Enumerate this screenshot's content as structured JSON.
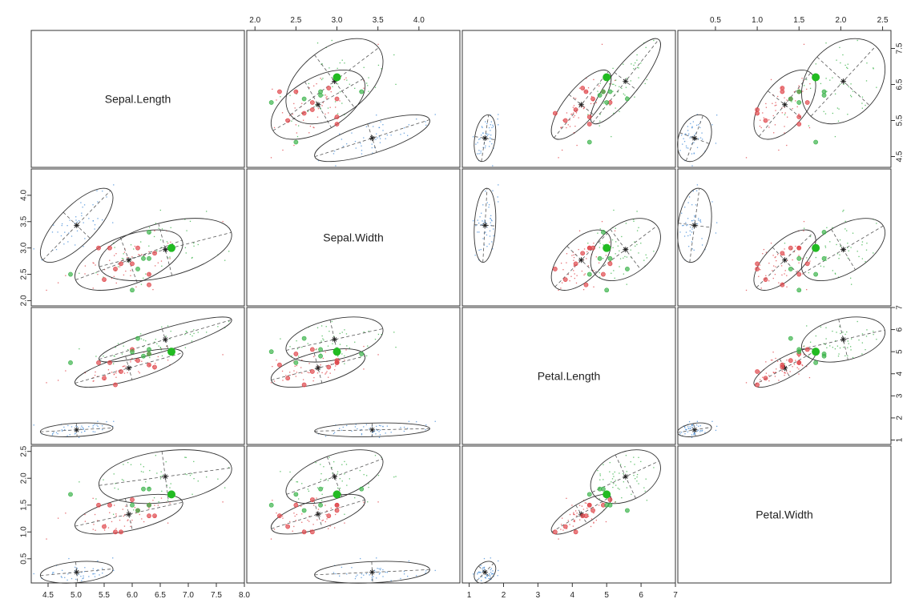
{
  "chart_data": {
    "type": "scatter-matrix",
    "variables": [
      "Sepal.Length",
      "Sepal.Width",
      "Petal.Length",
      "Petal.Width"
    ],
    "ranges": {
      "Sepal.Length": [
        4.2,
        8.0
      ],
      "Sepal.Width": [
        1.9,
        4.5
      ],
      "Petal.Length": [
        0.8,
        7.0
      ],
      "Petal.Width": [
        0.05,
        2.6
      ]
    },
    "ticks": {
      "Sepal.Length": {
        "bottom": [
          "4.5",
          "5.0",
          "5.5",
          "6.0",
          "6.5",
          "7.0",
          "7.5",
          "8.0"
        ],
        "right": [
          "4.5",
          "5.5",
          "6.5",
          "7.5"
        ]
      },
      "Sepal.Width": {
        "top": [
          "2.0",
          "2.5",
          "3.0",
          "3.5",
          "4.0"
        ],
        "left": [
          "2.0",
          "2.5",
          "3.0",
          "3.5",
          "4.0"
        ]
      },
      "Petal.Length": {
        "bottom": [
          "1",
          "2",
          "3",
          "4",
          "5",
          "6",
          "7"
        ],
        "right": [
          "1",
          "2",
          "3",
          "4",
          "5",
          "6",
          "7"
        ]
      },
      "Petal.Width": {
        "top": [
          "0.5",
          "1.0",
          "1.5",
          "2.0",
          "2.5"
        ],
        "left": [
          "0.5",
          "1.0",
          "1.5",
          "2.0",
          "2.5"
        ]
      }
    },
    "groups": [
      {
        "color": "#4a90d9",
        "center": [
          5.01,
          3.43,
          1.46,
          0.25
        ],
        "sd": [
          0.35,
          0.38,
          0.17,
          0.11
        ]
      },
      {
        "color": "#e0474c",
        "center": [
          5.94,
          2.77,
          4.26,
          1.33
        ],
        "sd": [
          0.52,
          0.31,
          0.47,
          0.2
        ]
      },
      {
        "color": "#3cb44b",
        "center": [
          6.59,
          2.97,
          5.55,
          2.03
        ],
        "sd": [
          0.64,
          0.32,
          0.55,
          0.27
        ]
      }
    ],
    "correlations": {
      "0": {
        "Sepal.Length|Sepal.Width": 0.74,
        "Sepal.Length|Petal.Length": 0.27,
        "Sepal.Length|Petal.Width": 0.28,
        "Sepal.Width|Petal.Length": 0.18,
        "Sepal.Width|Petal.Width": 0.23,
        "Petal.Length|Petal.Width": 0.33
      },
      "1": {
        "Sepal.Length|Sepal.Width": 0.53,
        "Sepal.Length|Petal.Length": 0.75,
        "Sepal.Length|Petal.Width": 0.55,
        "Sepal.Width|Petal.Length": 0.56,
        "Sepal.Width|Petal.Width": 0.66,
        "Petal.Length|Petal.Width": 0.79
      },
      "2": {
        "Sepal.Length|Sepal.Width": 0.46,
        "Sepal.Length|Petal.Length": 0.86,
        "Sepal.Length|Petal.Width": 0.28,
        "Sepal.Width|Petal.Length": 0.4,
        "Sepal.Width|Petal.Width": 0.54,
        "Petal.Length|Petal.Width": 0.32
      }
    },
    "highlighted_points": [
      {
        "group": 1,
        "values": [
          5.7,
          2.6,
          3.5,
          1.0
        ]
      },
      {
        "group": 1,
        "values": [
          6.0,
          2.7,
          5.1,
          1.6
        ]
      },
      {
        "group": 1,
        "values": [
          5.6,
          3.0,
          4.5,
          1.5
        ]
      },
      {
        "group": 1,
        "values": [
          5.4,
          3.0,
          4.5,
          1.5
        ]
      },
      {
        "group": 1,
        "values": [
          6.3,
          2.3,
          4.4,
          1.3
        ]
      },
      {
        "group": 1,
        "values": [
          6.3,
          2.5,
          4.9,
          1.5
        ]
      },
      {
        "group": 1,
        "values": [
          6.4,
          2.9,
          4.3,
          1.3
        ]
      },
      {
        "group": 1,
        "values": [
          5.5,
          2.4,
          3.8,
          1.1
        ]
      },
      {
        "group": 1,
        "values": [
          5.8,
          2.7,
          4.1,
          1.0
        ]
      },
      {
        "group": 1,
        "values": [
          6.1,
          3.0,
          4.6,
          1.4
        ]
      },
      {
        "group": 1,
        "values": [
          6.7,
          3.0,
          5.0,
          1.7
        ]
      },
      {
        "group": 2,
        "values": [
          4.9,
          2.5,
          4.5,
          1.7
        ]
      },
      {
        "group": 2,
        "values": [
          6.3,
          2.8,
          5.1,
          1.5
        ]
      },
      {
        "group": 2,
        "values": [
          6.0,
          2.2,
          5.0,
          1.5
        ]
      },
      {
        "group": 2,
        "values": [
          6.1,
          2.6,
          5.6,
          1.4
        ]
      },
      {
        "group": 2,
        "values": [
          6.2,
          2.8,
          4.8,
          1.8
        ]
      },
      {
        "group": 2,
        "values": [
          6.3,
          3.3,
          4.9,
          1.8
        ]
      }
    ],
    "emphasized_point": {
      "values": [
        6.7,
        3.0,
        5.0,
        1.7
      ],
      "color": "#22bb22"
    },
    "grid": false,
    "legend": "none"
  }
}
